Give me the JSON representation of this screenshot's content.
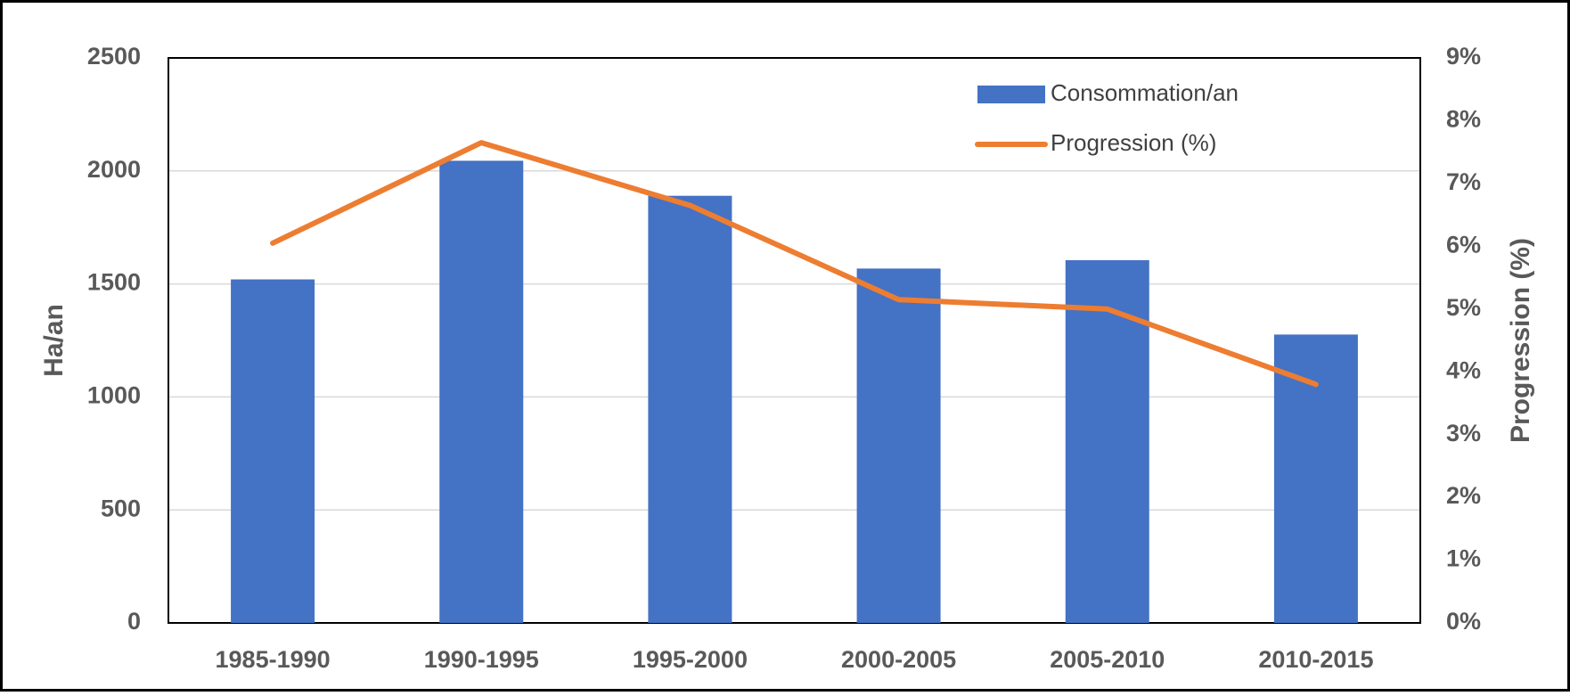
{
  "chart_data": {
    "type": "bar",
    "categories": [
      "1985-1990",
      "1990-1995",
      "1995-2000",
      "2000-2005",
      "2005-2010",
      "2010-2015"
    ],
    "series": [
      {
        "name": "Consommation/an",
        "type": "bar",
        "axis": "left",
        "color": "#4472C4",
        "values": [
          1520,
          2045,
          1890,
          1568,
          1605,
          1276
        ]
      },
      {
        "name": "Progression (%)",
        "type": "line",
        "axis": "right",
        "color": "#ED7D31",
        "values": [
          6.05,
          7.65,
          6.65,
          5.15,
          5.0,
          3.8
        ]
      }
    ],
    "title": "",
    "xlabel": "",
    "ylabel": "Ha/an",
    "y2label": "Progression (%)",
    "ylim": [
      0,
      2500
    ],
    "y2lim": [
      0,
      9
    ],
    "yticks": [
      "0",
      "500",
      "1000",
      "1500",
      "2000",
      "2500"
    ],
    "y2ticks": [
      "0%",
      "1%",
      "2%",
      "3%",
      "4%",
      "5%",
      "6%",
      "7%",
      "8%",
      "9%"
    ],
    "grid": true,
    "legend_position": "top-right"
  }
}
